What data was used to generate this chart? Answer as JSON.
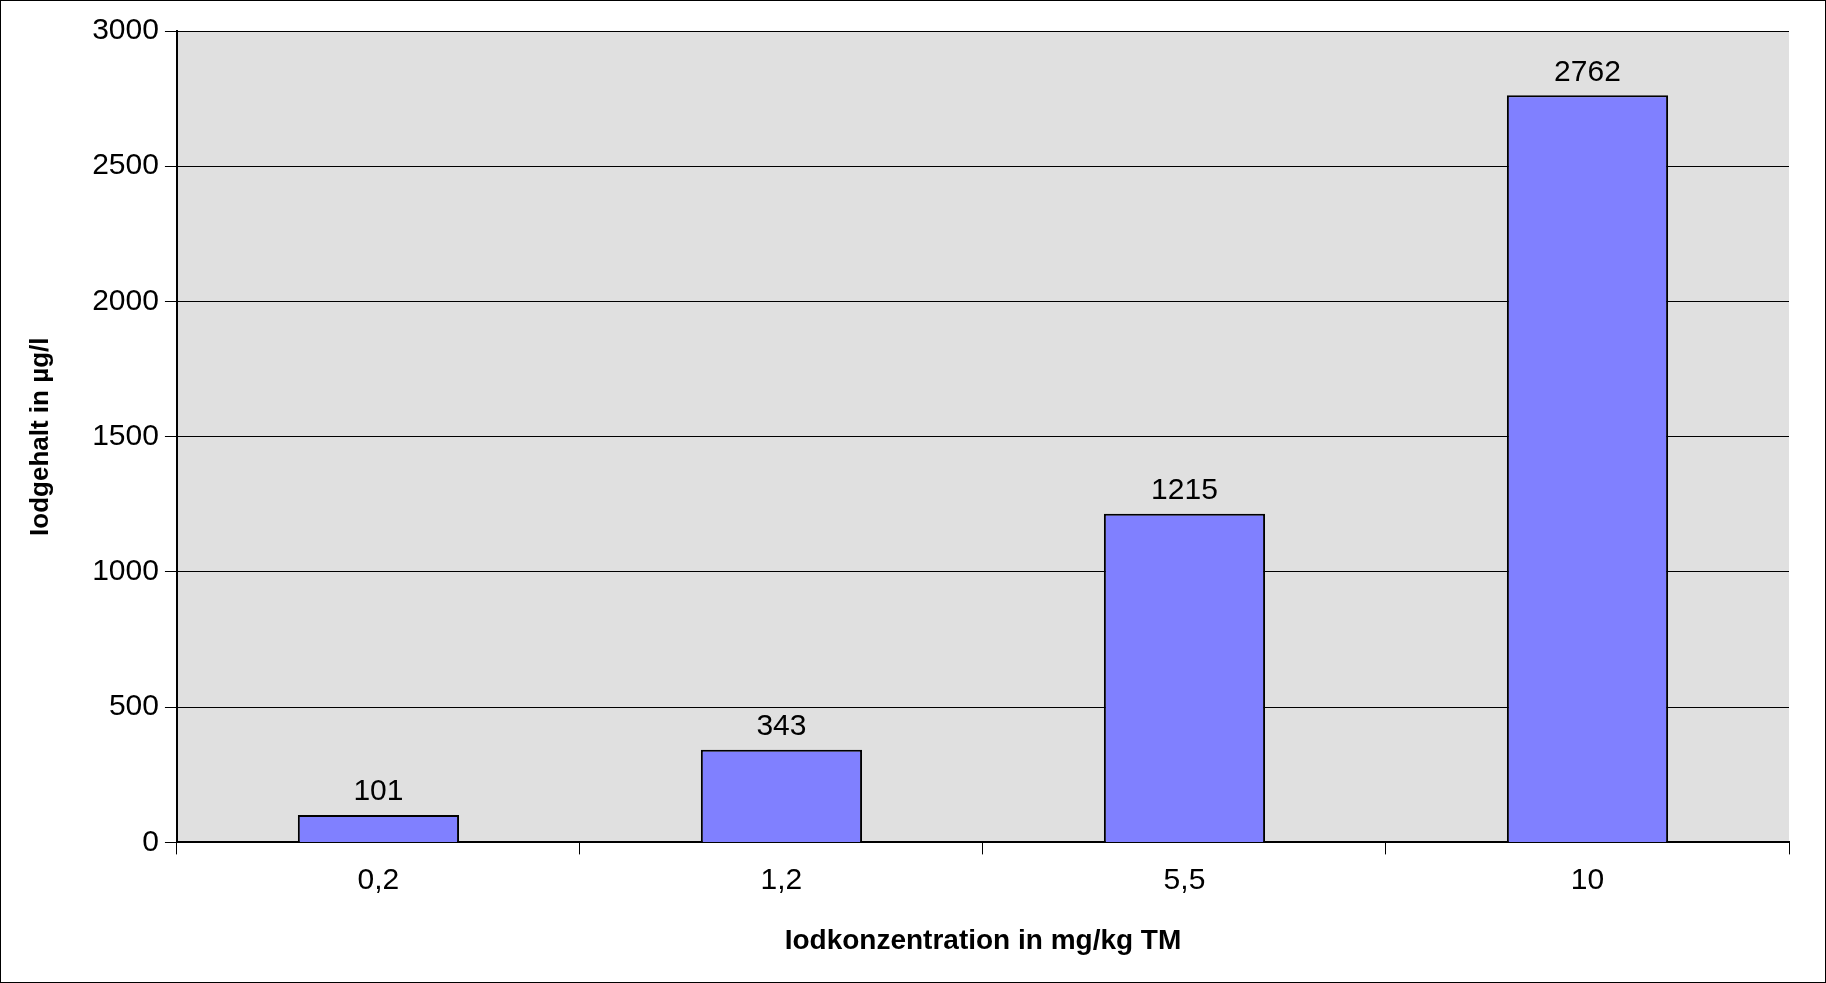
{
  "chart_data": {
    "type": "bar",
    "xlabel": "Iodkonzentration in mg/kg TM",
    "ylabel": "Iodgehalt in µg/l",
    "categories": [
      "0,2",
      "1,2",
      "5,5",
      "10"
    ],
    "values": [
      101,
      343,
      1215,
      2762
    ],
    "color": "#8080ff",
    "ylim": [
      0,
      3000
    ],
    "yticks": [
      0,
      500,
      1000,
      1500,
      2000,
      2500,
      3000
    ],
    "grid": "y",
    "data_labels": true,
    "legend": false
  }
}
